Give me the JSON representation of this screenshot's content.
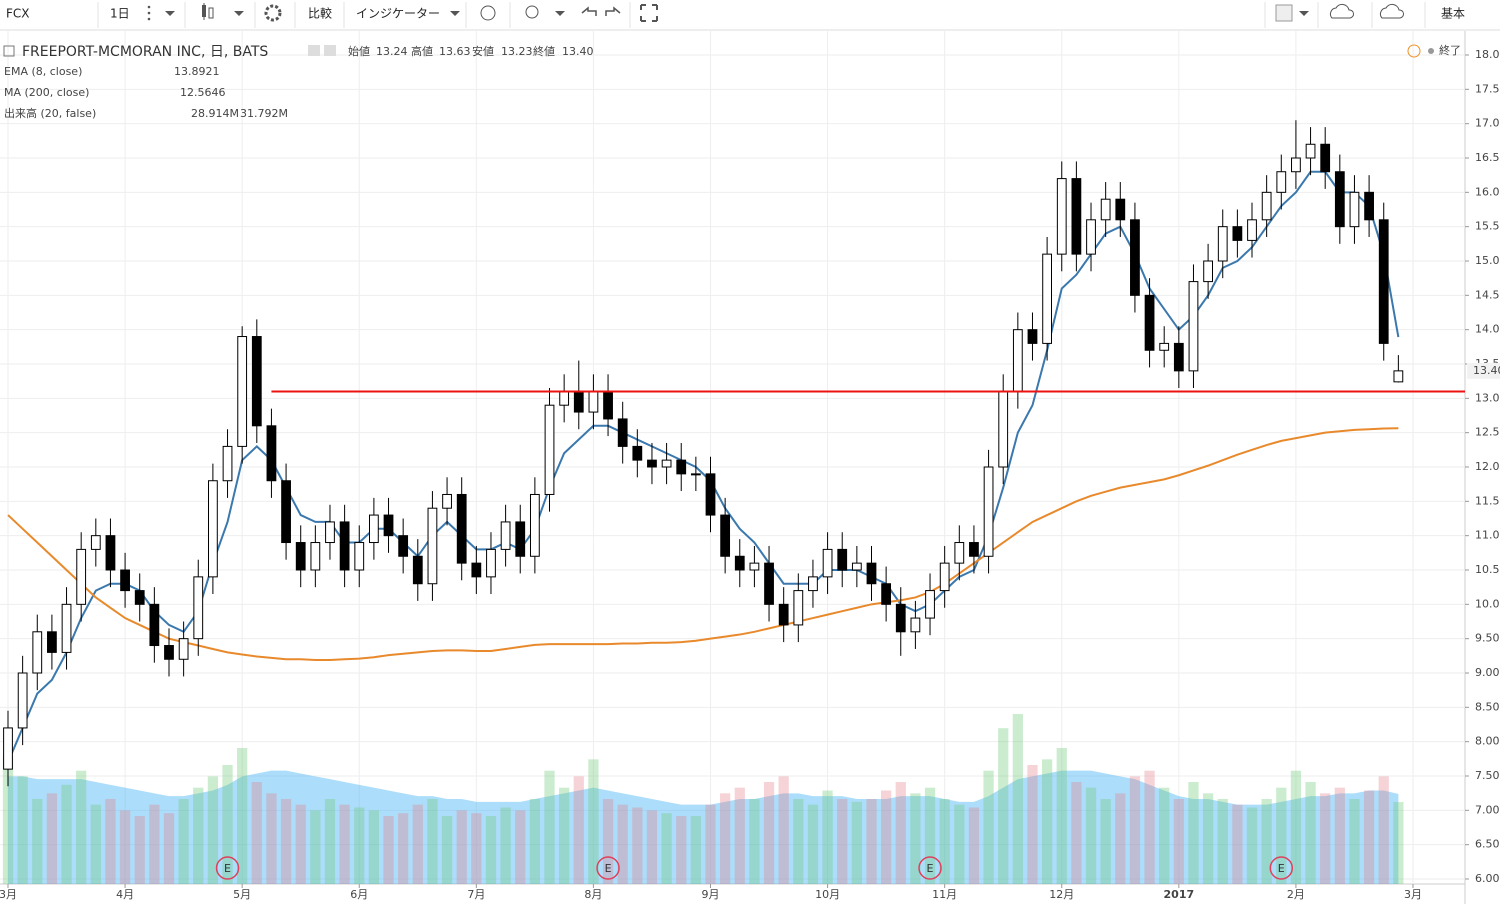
{
  "toolbar": {
    "symbol": "FCX",
    "interval": "1日",
    "compare": "比較",
    "indicators": "インジケーター",
    "layout": "基本"
  },
  "chart_data": {
    "type": "candlestick",
    "title": "FREEPORT-MCMORAN INC, 日, BATS",
    "status": "終了",
    "legend_ohlc": [
      {
        "label": "始値",
        "value": "13.24"
      },
      {
        "label": "高値",
        "value": "13.63"
      },
      {
        "label": "安値",
        "value": "13.23"
      },
      {
        "label": "終値",
        "value": "13.40"
      }
    ],
    "up_color": "#ffffff",
    "down_color": "#000000",
    "ylim": [
      6,
      18
    ],
    "yticks": [
      {
        "value": 6,
        "label": "6.00"
      },
      {
        "value": 6.5,
        "label": "6.50"
      },
      {
        "value": 7,
        "label": "7.00"
      },
      {
        "value": 7.5,
        "label": "7.50"
      },
      {
        "value": 8,
        "label": "8.00"
      },
      {
        "value": 8.5,
        "label": "8.50"
      },
      {
        "value": 9,
        "label": "9.00"
      },
      {
        "value": 9.5,
        "label": "9.50"
      },
      {
        "value": 10,
        "label": "10.00"
      },
      {
        "value": 10.5,
        "label": "10.50"
      },
      {
        "value": 11,
        "label": "11.00"
      },
      {
        "value": 11.5,
        "label": "11.50"
      },
      {
        "value": 12,
        "label": "12.00"
      },
      {
        "value": 12.5,
        "label": "12.50"
      },
      {
        "value": 13,
        "label": "13.00"
      },
      {
        "value": 13.5,
        "label": "13.50"
      },
      {
        "value": 14,
        "label": "14.00"
      },
      {
        "value": 14.5,
        "label": "14.50"
      },
      {
        "value": 15,
        "label": "15.00"
      },
      {
        "value": 15.5,
        "label": "15.50"
      },
      {
        "value": 16,
        "label": "16.00"
      },
      {
        "value": 16.5,
        "label": "16.50"
      },
      {
        "value": 17,
        "label": "17.00"
      },
      {
        "value": 17.5,
        "label": "17.50"
      },
      {
        "value": 18,
        "label": "18.00"
      }
    ],
    "xlim": [
      0,
      96
    ],
    "xticks": [
      {
        "value": 0,
        "label": "3月"
      },
      {
        "value": 8,
        "label": "4月"
      },
      {
        "value": 16,
        "label": "5月"
      },
      {
        "value": 24,
        "label": "6月"
      },
      {
        "value": 32,
        "label": "7月"
      },
      {
        "value": 40,
        "label": "8月"
      },
      {
        "value": 48,
        "label": "9月"
      },
      {
        "value": 56,
        "label": "10月"
      },
      {
        "value": 64,
        "label": "11月"
      },
      {
        "value": 72,
        "label": "12月"
      },
      {
        "value": 80,
        "label": "2017"
      },
      {
        "value": 88,
        "label": "2月"
      },
      {
        "value": 96,
        "label": "3月"
      }
    ],
    "grid": true,
    "last_price": {
      "value": 13.4,
      "label": "13.40"
    },
    "hline": {
      "value": 13.1,
      "from_x": 18,
      "color": "#ee1111"
    },
    "earnings": {
      "label": "E",
      "x": [
        15,
        41,
        63,
        87
      ],
      "color": "#e0405a"
    },
    "ohlc": [
      [
        7.6,
        8.45,
        7.35,
        8.2
      ],
      [
        8.2,
        9.25,
        7.95,
        9.0
      ],
      [
        9.0,
        9.85,
        8.75,
        9.6
      ],
      [
        9.6,
        9.85,
        9.05,
        9.3
      ],
      [
        9.3,
        10.25,
        9.05,
        10.0
      ],
      [
        10.0,
        11.05,
        9.75,
        10.8
      ],
      [
        10.8,
        11.25,
        10.55,
        11.0
      ],
      [
        11.0,
        11.25,
        10.25,
        10.5
      ],
      [
        10.5,
        10.75,
        9.95,
        10.2
      ],
      [
        10.2,
        10.45,
        9.75,
        10.0
      ],
      [
        10.0,
        10.25,
        9.15,
        9.4
      ],
      [
        9.4,
        9.65,
        8.95,
        9.2
      ],
      [
        9.2,
        9.75,
        8.95,
        9.5
      ],
      [
        9.5,
        10.65,
        9.25,
        10.4
      ],
      [
        10.4,
        12.05,
        10.15,
        11.8
      ],
      [
        11.8,
        12.55,
        11.55,
        12.3
      ],
      [
        12.3,
        14.05,
        12.05,
        13.9
      ],
      [
        13.9,
        14.15,
        12.35,
        12.6
      ],
      [
        12.6,
        12.85,
        11.55,
        11.8
      ],
      [
        11.8,
        12.05,
        10.65,
        10.9
      ],
      [
        10.9,
        11.15,
        10.25,
        10.5
      ],
      [
        10.5,
        11.15,
        10.25,
        10.9
      ],
      [
        10.9,
        11.45,
        10.65,
        11.2
      ],
      [
        11.2,
        11.45,
        10.25,
        10.5
      ],
      [
        10.5,
        11.15,
        10.25,
        10.9
      ],
      [
        10.9,
        11.55,
        10.65,
        11.3
      ],
      [
        11.3,
        11.55,
        10.75,
        11.0
      ],
      [
        11.0,
        11.25,
        10.45,
        10.7
      ],
      [
        10.7,
        10.95,
        10.05,
        10.3
      ],
      [
        10.3,
        11.65,
        10.05,
        11.4
      ],
      [
        11.4,
        11.85,
        11.15,
        11.6
      ],
      [
        11.6,
        11.85,
        10.35,
        10.6
      ],
      [
        10.6,
        10.85,
        10.15,
        10.4
      ],
      [
        10.4,
        11.05,
        10.15,
        10.8
      ],
      [
        10.8,
        11.45,
        10.55,
        11.2
      ],
      [
        11.2,
        11.45,
        10.45,
        10.7
      ],
      [
        10.7,
        11.85,
        10.45,
        11.6
      ],
      [
        11.6,
        13.15,
        11.35,
        12.9
      ],
      [
        12.9,
        13.35,
        12.65,
        13.1
      ],
      [
        13.1,
        13.55,
        12.55,
        12.8
      ],
      [
        12.8,
        13.35,
        12.55,
        13.1
      ],
      [
        13.1,
        13.35,
        12.45,
        12.7
      ],
      [
        12.7,
        12.95,
        12.05,
        12.3
      ],
      [
        12.3,
        12.55,
        11.85,
        12.1
      ],
      [
        12.1,
        12.35,
        11.75,
        12.0
      ],
      [
        12.0,
        12.35,
        11.75,
        12.1
      ],
      [
        12.1,
        12.35,
        11.65,
        11.9
      ],
      [
        11.9,
        12.15,
        11.65,
        11.9
      ],
      [
        11.9,
        12.15,
        11.05,
        11.3
      ],
      [
        11.3,
        11.55,
        10.45,
        10.7
      ],
      [
        10.7,
        10.95,
        10.25,
        10.5
      ],
      [
        10.5,
        10.85,
        10.25,
        10.6
      ],
      [
        10.6,
        10.85,
        9.75,
        10.0
      ],
      [
        10.0,
        10.25,
        9.45,
        9.7
      ],
      [
        9.7,
        10.45,
        9.45,
        10.2
      ],
      [
        10.2,
        10.65,
        9.95,
        10.4
      ],
      [
        10.4,
        11.05,
        10.15,
        10.8
      ],
      [
        10.8,
        11.05,
        10.25,
        10.5
      ],
      [
        10.5,
        10.85,
        10.25,
        10.6
      ],
      [
        10.6,
        10.85,
        10.05,
        10.3
      ],
      [
        10.3,
        10.55,
        9.75,
        10.0
      ],
      [
        10.0,
        10.25,
        9.25,
        9.6
      ],
      [
        9.6,
        10.05,
        9.35,
        9.8
      ],
      [
        9.8,
        10.45,
        9.55,
        10.2
      ],
      [
        10.2,
        10.85,
        9.95,
        10.6
      ],
      [
        10.6,
        11.15,
        10.35,
        10.9
      ],
      [
        10.9,
        11.15,
        10.45,
        10.7
      ],
      [
        10.7,
        12.25,
        10.45,
        12.0
      ],
      [
        12.0,
        13.35,
        11.75,
        13.1
      ],
      [
        13.1,
        14.25,
        12.85,
        14.0
      ],
      [
        14.0,
        14.25,
        13.55,
        13.8
      ],
      [
        13.8,
        15.35,
        13.55,
        15.1
      ],
      [
        15.1,
        16.45,
        14.85,
        16.2
      ],
      [
        16.2,
        16.45,
        14.85,
        15.1
      ],
      [
        15.1,
        15.85,
        14.85,
        15.6
      ],
      [
        15.6,
        16.15,
        15.35,
        15.9
      ],
      [
        15.9,
        16.15,
        15.35,
        15.6
      ],
      [
        15.6,
        15.85,
        14.25,
        14.5
      ],
      [
        14.5,
        14.75,
        13.45,
        13.7
      ],
      [
        13.7,
        14.05,
        13.45,
        13.8
      ],
      [
        13.8,
        14.05,
        13.15,
        13.4
      ],
      [
        13.4,
        14.95,
        13.15,
        14.7
      ],
      [
        14.7,
        15.25,
        14.45,
        15.0
      ],
      [
        15.0,
        15.75,
        14.75,
        15.5
      ],
      [
        15.5,
        15.75,
        15.05,
        15.3
      ],
      [
        15.3,
        15.85,
        15.05,
        15.6
      ],
      [
        15.6,
        16.25,
        15.35,
        16.0
      ],
      [
        16.0,
        16.55,
        15.75,
        16.3
      ],
      [
        16.3,
        17.05,
        16.05,
        16.5
      ],
      [
        16.5,
        16.95,
        16.25,
        16.7
      ],
      [
        16.7,
        16.95,
        16.05,
        16.3
      ],
      [
        16.3,
        16.55,
        15.25,
        15.5
      ],
      [
        15.5,
        16.25,
        15.25,
        16.0
      ],
      [
        16.0,
        16.25,
        15.35,
        15.6
      ],
      [
        15.6,
        15.85,
        13.55,
        13.8
      ],
      [
        13.24,
        13.63,
        13.23,
        13.4
      ]
    ],
    "series": [
      {
        "name": "EMA (8, close)",
        "type": "line",
        "color": "#3a78ad",
        "value_label": "13.8921",
        "values": [
          7.7,
          8.2,
          8.7,
          8.9,
          9.3,
          9.8,
          10.2,
          10.3,
          10.3,
          10.2,
          9.9,
          9.7,
          9.6,
          9.9,
          10.6,
          11.2,
          12.1,
          12.3,
          12.1,
          11.7,
          11.3,
          11.2,
          11.2,
          10.9,
          10.9,
          11.1,
          11.1,
          10.9,
          10.7,
          11.0,
          11.2,
          11.0,
          10.8,
          10.8,
          10.9,
          10.8,
          11.1,
          11.7,
          12.2,
          12.4,
          12.6,
          12.6,
          12.5,
          12.4,
          12.3,
          12.2,
          12.1,
          12.0,
          11.8,
          11.4,
          11.1,
          10.9,
          10.6,
          10.3,
          10.3,
          10.3,
          10.5,
          10.5,
          10.5,
          10.4,
          10.3,
          10.0,
          9.9,
          10.0,
          10.2,
          10.4,
          10.5,
          11.0,
          11.7,
          12.5,
          12.9,
          13.7,
          14.6,
          14.8,
          15.1,
          15.4,
          15.5,
          15.1,
          14.6,
          14.3,
          14.0,
          14.2,
          14.5,
          14.9,
          15.0,
          15.2,
          15.5,
          15.8,
          16.0,
          16.3,
          16.3,
          16.0,
          16.0,
          15.8,
          15.1,
          13.8921
        ]
      },
      {
        "name": "MA (200, close)",
        "type": "line",
        "color": "#e8892c",
        "value_label": "12.5646",
        "values": [
          11.3,
          11.1,
          10.9,
          10.7,
          10.5,
          10.3,
          10.1,
          9.95,
          9.8,
          9.7,
          9.6,
          9.5,
          9.45,
          9.4,
          9.35,
          9.3,
          9.27,
          9.24,
          9.22,
          9.2,
          9.2,
          9.19,
          9.19,
          9.2,
          9.21,
          9.23,
          9.26,
          9.28,
          9.3,
          9.32,
          9.33,
          9.33,
          9.32,
          9.32,
          9.35,
          9.38,
          9.41,
          9.42,
          9.42,
          9.42,
          9.42,
          9.42,
          9.43,
          9.43,
          9.44,
          9.44,
          9.45,
          9.47,
          9.5,
          9.53,
          9.56,
          9.6,
          9.65,
          9.7,
          9.75,
          9.8,
          9.85,
          9.9,
          9.95,
          10.0,
          10.03,
          10.06,
          10.1,
          10.18,
          10.3,
          10.45,
          10.6,
          10.75,
          10.9,
          11.05,
          11.2,
          11.3,
          11.4,
          11.5,
          11.58,
          11.64,
          11.7,
          11.74,
          11.78,
          11.82,
          11.88,
          11.95,
          12.02,
          12.1,
          12.18,
          12.25,
          12.32,
          12.38,
          12.42,
          12.46,
          12.5,
          12.52,
          12.54,
          12.55,
          12.56,
          12.5646
        ]
      }
    ],
    "volume": {
      "name": "出来高 (20, false)",
      "labels": [
        "28.914M",
        "31.792M"
      ],
      "label_colors": [
        "#2e9a3c",
        "#2a9ee0"
      ],
      "up_color": "rgba(110,200,120,0.35)",
      "down_color": "rgba(225,130,140,0.35)",
      "ma_color": "rgba(70,180,245,0.45)",
      "values": [
        45,
        38,
        30,
        32,
        35,
        40,
        28,
        30,
        26,
        24,
        28,
        25,
        30,
        34,
        38,
        42,
        48,
        36,
        32,
        30,
        28,
        26,
        30,
        28,
        27,
        26,
        24,
        25,
        28,
        30,
        24,
        26,
        25,
        24,
        27,
        26,
        30,
        40,
        34,
        38,
        44,
        30,
        28,
        27,
        26,
        25,
        24,
        24,
        28,
        32,
        34,
        30,
        36,
        38,
        30,
        28,
        33,
        30,
        29,
        30,
        33,
        36,
        32,
        34,
        30,
        28,
        27,
        40,
        55,
        60,
        42,
        44,
        48,
        36,
        34,
        30,
        32,
        38,
        40,
        34,
        30,
        36,
        32,
        30,
        28,
        27,
        30,
        34,
        40,
        36,
        32,
        34,
        30,
        33,
        38,
        28.914
      ],
      "ma_values": [
        38,
        38,
        37,
        37,
        37,
        37,
        36,
        35,
        34,
        33,
        32,
        31,
        31,
        32,
        33,
        35,
        38,
        39,
        40,
        40,
        39,
        38,
        37,
        36,
        35,
        34,
        33,
        32,
        31,
        31,
        30,
        30,
        29,
        29,
        29,
        29,
        30,
        31,
        32,
        33,
        34,
        33,
        32,
        31,
        30,
        29,
        28,
        28,
        28,
        29,
        30,
        30,
        31,
        32,
        32,
        31,
        31,
        31,
        30,
        30,
        30,
        31,
        31,
        31,
        30,
        29,
        29,
        31,
        34,
        37,
        38,
        39,
        40,
        40,
        40,
        39,
        38,
        37,
        35,
        33,
        31,
        30,
        30,
        29,
        28,
        28,
        28,
        29,
        30,
        31,
        31,
        32,
        32,
        33,
        33,
        31.792
      ]
    }
  }
}
